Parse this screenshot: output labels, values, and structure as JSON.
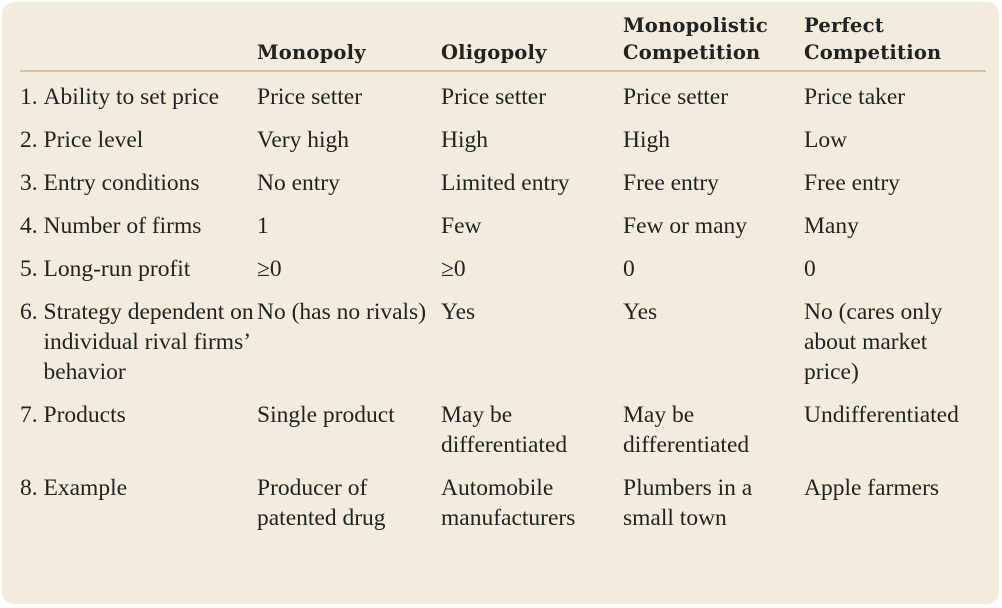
{
  "table": {
    "headers": [
      "",
      "Monopoly",
      "Oligopoly",
      "Monopolistic Competition",
      "Perfect Competition"
    ],
    "rows": [
      {
        "num": "1. ",
        "label": "Ability to set price",
        "cells": [
          "Price setter",
          "Price setter",
          "Price setter",
          "Price taker"
        ]
      },
      {
        "num": "2. ",
        "label": "Price level",
        "cells": [
          "Very high",
          "High",
          "High",
          "Low"
        ]
      },
      {
        "num": "3. ",
        "label": "Entry conditions",
        "cells": [
          "No entry",
          "Limited entry",
          "Free entry",
          "Free entry"
        ]
      },
      {
        "num": "4. ",
        "label": "Number of firms",
        "cells": [
          "1",
          "Few",
          "Few or many",
          "Many"
        ]
      },
      {
        "num": "5. ",
        "label": "Long-run profit",
        "cells": [
          "≥0",
          "≥0",
          "0",
          "0"
        ]
      },
      {
        "num": "6. ",
        "label": "Strategy dependent on individual rival firms’ behavior",
        "cells": [
          "No (has no rivals)",
          "Yes",
          "Yes",
          "No (cares only about market price)"
        ]
      },
      {
        "num": "7. ",
        "label": "Products",
        "cells": [
          "Single product",
          "May be differentiated",
          "May be differentiated",
          "Undifferentiated"
        ]
      },
      {
        "num": "8. ",
        "label": "Example",
        "cells": [
          "Producer of patented drug",
          "Automobile manufacturers",
          "Plumbers in a small town",
          "Apple farmers"
        ]
      }
    ]
  },
  "colors": {
    "background": "#f4ebdf",
    "rule": "#dcbf9f",
    "text": "#222222"
  }
}
